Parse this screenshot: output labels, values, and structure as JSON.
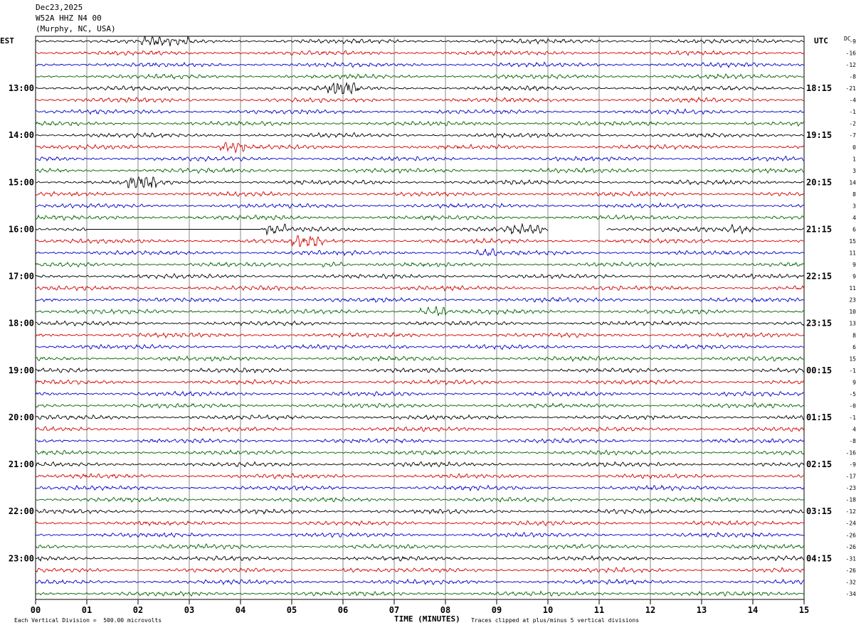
{
  "header": {
    "date": "Dec23,2025",
    "station": "W52A HHZ N4 00",
    "location": "(Murphy, NC, USA)"
  },
  "left_zone_label": "EST",
  "right_zone_label": "UTC",
  "dc_label": "DC",
  "footer": {
    "vertical_division": "Each Vertical Division =  500.00 microvolts",
    "xlabel": "TIME (MINUTES)",
    "clip_note": "Traces clipped at plus/minus 5 vertical divisions"
  },
  "chart_data": {
    "type": "line",
    "title": "Dec23,2025 W52A HHZ N4 00 (Murphy, NC, USA)",
    "xlabel": "TIME (MINUTES)",
    "ylabel": "",
    "xlim": [
      0,
      15
    ],
    "x_ticks": [
      "00",
      "01",
      "02",
      "03",
      "04",
      "05",
      "06",
      "07",
      "08",
      "09",
      "10",
      "11",
      "12",
      "13",
      "14",
      "15"
    ],
    "left_time_labels": [
      "13:00",
      "14:00",
      "15:00",
      "16:00",
      "17:00",
      "18:00",
      "19:00",
      "20:00",
      "21:00",
      "22:00",
      "23:00"
    ],
    "right_time_labels": [
      "18:15",
      "19:15",
      "20:15",
      "21:15",
      "22:15",
      "23:15",
      "00:15",
      "01:15",
      "02:15",
      "03:15",
      "04:15"
    ],
    "trace_colors": [
      "#000000",
      "#d40000",
      "#0000c8",
      "#006400"
    ],
    "grid": "vertical lines every minute",
    "trace_count": 48,
    "dc_offsets": [
      "-9",
      "-16",
      "-12",
      "-8",
      "-21",
      "-4",
      "-1",
      "-2",
      "-7",
      "0",
      "1",
      "3",
      "14",
      "8",
      "3",
      "4",
      "6",
      "15",
      "11",
      "9",
      "9",
      "11",
      "23",
      "10",
      "13",
      "8",
      "6",
      "15",
      "-1",
      "9",
      "-5",
      "-0",
      "-1",
      "4",
      "-8",
      "-16",
      "-9",
      "-17",
      "-23",
      "-18",
      "-12",
      "-24",
      "-26",
      "-26",
      "-31",
      "-26",
      "-32",
      "-34"
    ]
  }
}
